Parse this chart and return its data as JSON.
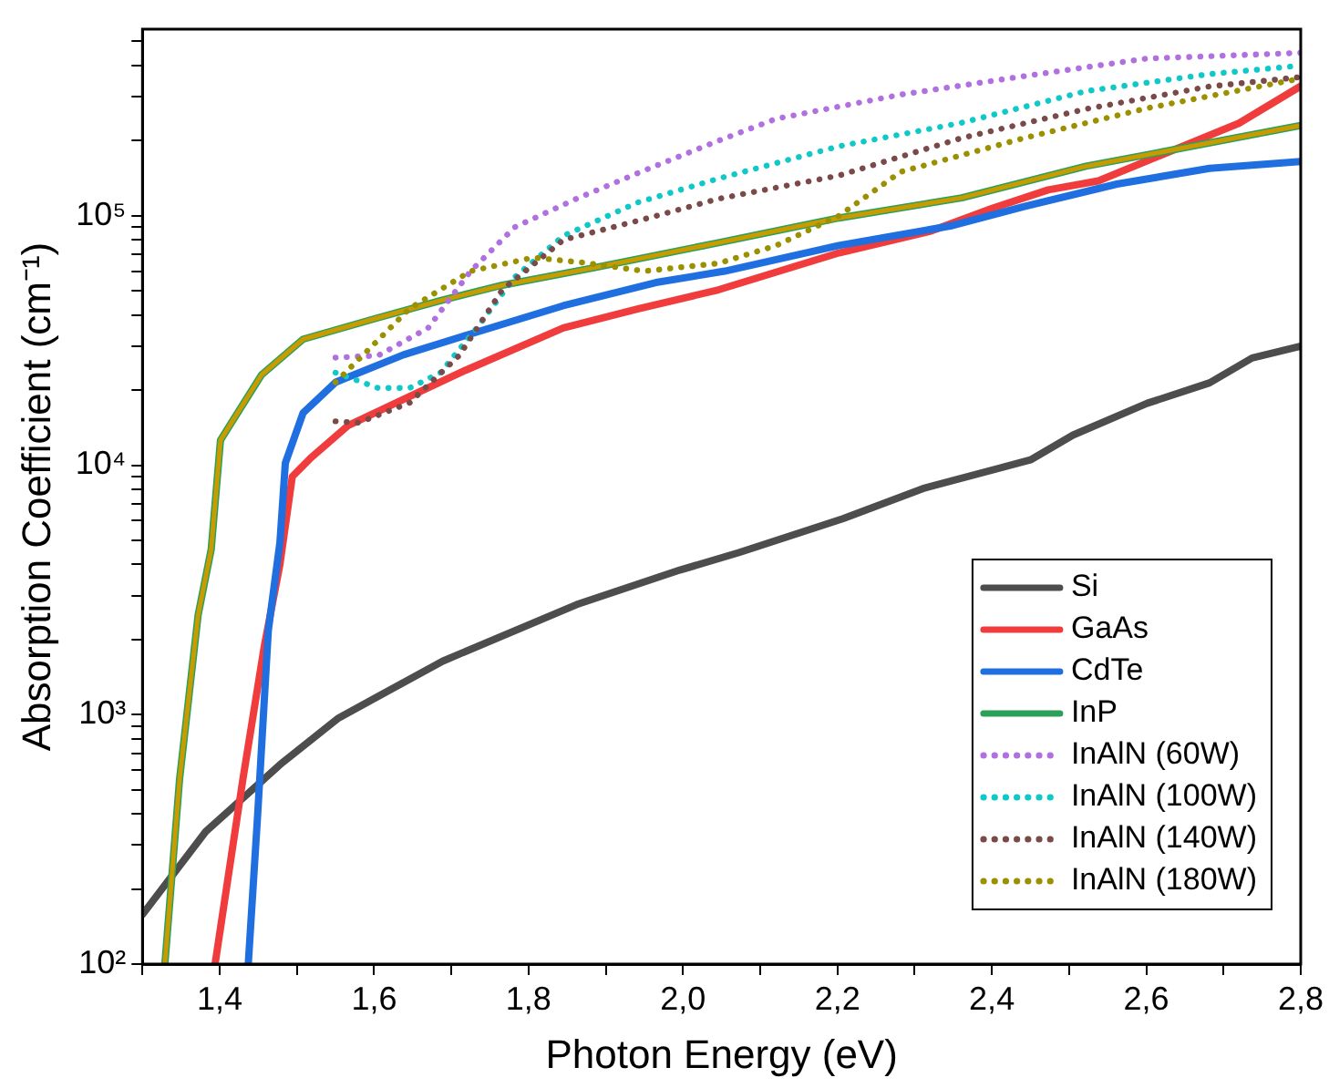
{
  "chart_data": {
    "type": "line",
    "xlabel": "Photon Energy (eV)",
    "ylabel": "Absorption Coefficient (cm⁻¹)",
    "log": "y",
    "grid": false,
    "legend": "bottom right",
    "marker": "none",
    "xlim": [
      1.3,
      2.8
    ],
    "ylim": [
      100,
      560000
    ],
    "xticks": [
      {
        "value": 1.3,
        "label": null
      },
      {
        "value": 1.4,
        "label": "1,4"
      },
      {
        "value": 1.5,
        "label": null
      },
      {
        "value": 1.6,
        "label": "1,6"
      },
      {
        "value": 1.7,
        "label": null
      },
      {
        "value": 1.8,
        "label": "1,8"
      },
      {
        "value": 1.9,
        "label": null
      },
      {
        "value": 2.0,
        "label": "2,0"
      },
      {
        "value": 2.1,
        "label": null
      },
      {
        "value": 2.2,
        "label": "2,2"
      },
      {
        "value": 2.3,
        "label": null
      },
      {
        "value": 2.4,
        "label": "2,4"
      },
      {
        "value": 2.5,
        "label": null
      },
      {
        "value": 2.6,
        "label": "2,6"
      },
      {
        "value": 2.7,
        "label": null
      },
      {
        "value": 2.8,
        "label": "2,8"
      }
    ],
    "yticks": [
      {
        "value": 100,
        "label": "10²"
      },
      {
        "value": 200,
        "label": null
      },
      {
        "value": 300,
        "label": null
      },
      {
        "value": 400,
        "label": null
      },
      {
        "value": 500,
        "label": null
      },
      {
        "value": 600,
        "label": null
      },
      {
        "value": 700,
        "label": null
      },
      {
        "value": 800,
        "label": null
      },
      {
        "value": 900,
        "label": null
      },
      {
        "value": 1000,
        "label": "10³"
      },
      {
        "value": 2000,
        "label": null
      },
      {
        "value": 3000,
        "label": null
      },
      {
        "value": 4000,
        "label": null
      },
      {
        "value": 5000,
        "label": null
      },
      {
        "value": 6000,
        "label": null
      },
      {
        "value": 7000,
        "label": null
      },
      {
        "value": 8000,
        "label": null
      },
      {
        "value": 9000,
        "label": null
      },
      {
        "value": 10000,
        "label": "10⁴"
      },
      {
        "value": 20000,
        "label": null
      },
      {
        "value": 30000,
        "label": null
      },
      {
        "value": 40000,
        "label": null
      },
      {
        "value": 50000,
        "label": null
      },
      {
        "value": 60000,
        "label": null
      },
      {
        "value": 70000,
        "label": null
      },
      {
        "value": 80000,
        "label": null
      },
      {
        "value": 90000,
        "label": null
      },
      {
        "value": 100000,
        "label": "10⁵"
      },
      {
        "value": 200000,
        "label": null
      },
      {
        "value": 300000,
        "label": null
      },
      {
        "value": 400000,
        "label": null
      },
      {
        "value": 500000,
        "label": null
      }
    ],
    "series": [
      {
        "name": "Si",
        "color": "#4d4d4d",
        "line_style": "solid",
        "x": [
          1.3,
          1.382,
          1.478,
          1.554,
          1.689,
          1.862,
          1.996,
          2.073,
          2.207,
          2.313,
          2.45,
          2.505,
          2.601,
          2.682,
          2.737,
          2.8
        ],
        "values": [
          158,
          340,
          630,
          970,
          1640,
          2760,
          3800,
          4470,
          6100,
          8100,
          10500,
          13200,
          17700,
          21400,
          26900,
          30000
        ]
      },
      {
        "name": "GaAs",
        "color": "#f03c3c",
        "line_style": "solid",
        "x": [
          1.394,
          1.43,
          1.458,
          1.478,
          1.494,
          1.518,
          1.566,
          1.629,
          1.718,
          1.845,
          1.941,
          2.046,
          2.202,
          2.322,
          2.4,
          2.473,
          2.538,
          2.617,
          2.72,
          2.8
        ],
        "values": [
          100,
          550,
          1900,
          4000,
          9000,
          10700,
          14400,
          17800,
          24000,
          35500,
          42300,
          50500,
          71000,
          87000,
          107000,
          127000,
          138000,
          174000,
          235000,
          331000
        ]
      },
      {
        "name": "CdTe",
        "color": "#1f6fe0",
        "line_style": "solid",
        "x": [
          1.437,
          1.449,
          1.463,
          1.478,
          1.485,
          1.508,
          1.55,
          1.638,
          1.725,
          1.845,
          1.965,
          2.054,
          2.202,
          2.346,
          2.442,
          2.562,
          2.682,
          2.8
        ],
        "values": [
          100,
          390,
          2180,
          4900,
          10200,
          16200,
          21500,
          27700,
          33600,
          43600,
          54000,
          60000,
          76000,
          91000,
          109000,
          134000,
          155000,
          165000
        ]
      },
      {
        "name": "InP",
        "color": "#2ca05a",
        "line_style": "solid",
        "x": [
          1.329,
          1.348,
          1.372,
          1.389,
          1.401,
          1.454,
          1.508,
          1.605,
          1.686,
          1.766,
          1.886,
          2.046,
          2.202,
          2.361,
          2.522,
          2.682,
          2.8
        ],
        "values": [
          100,
          550,
          2500,
          4600,
          12600,
          23000,
          32000,
          39000,
          45700,
          52700,
          62000,
          78000,
          98000,
          118000,
          158000,
          196000,
          230000
        ]
      },
      {
        "color": "#c89b00",
        "line_style": "solid",
        "x": [
          1.329,
          1.348,
          1.372,
          1.389,
          1.401,
          1.454,
          1.508,
          1.605,
          1.686,
          1.766,
          1.886,
          2.046,
          2.202,
          2.361,
          2.522,
          2.682,
          2.8
        ],
        "values": [
          100,
          550,
          2500,
          4600,
          12600,
          23000,
          32000,
          39000,
          45700,
          52700,
          62000,
          78000,
          98000,
          118000,
          158000,
          196000,
          230000
        ]
      },
      {
        "name": "InAlN (60W)",
        "color": "#b070e0",
        "line_style": "dotted",
        "x": [
          1.55,
          1.605,
          1.67,
          1.725,
          1.782,
          1.862,
          1.95,
          2.046,
          2.121,
          2.282,
          2.442,
          2.601,
          2.8
        ],
        "values": [
          27000,
          27500,
          35500,
          60000,
          90000,
          117000,
          152000,
          200000,
          245000,
          306000,
          363000,
          427000,
          450000
        ]
      },
      {
        "name": "InAlN (100W)",
        "color": "#10c8c8",
        "line_style": "dotted",
        "x": [
          1.55,
          1.605,
          1.646,
          1.686,
          1.734,
          1.782,
          1.845,
          1.941,
          2.046,
          2.202,
          2.361,
          2.522,
          2.682,
          2.8
        ],
        "values": [
          23500,
          20400,
          20400,
          23500,
          35800,
          56700,
          83000,
          113000,
          141000,
          190000,
          236000,
          316000,
          370000,
          400000
        ]
      },
      {
        "name": "InAlN (140W)",
        "color": "#7a4a48",
        "line_style": "dotted",
        "x": [
          1.55,
          1.58,
          1.646,
          1.71,
          1.766,
          1.845,
          1.95,
          2.046,
          2.202,
          2.361,
          2.522,
          2.682,
          2.8
        ],
        "values": [
          15000,
          14800,
          17800,
          27500,
          50500,
          80000,
          97000,
          117000,
          145000,
          205000,
          268000,
          330000,
          360000
        ]
      },
      {
        "name": "InAlN (180W)",
        "color": "#9a9000",
        "line_style": "dotted",
        "x": [
          1.55,
          1.59,
          1.646,
          1.725,
          1.806,
          1.869,
          1.95,
          2.046,
          2.121,
          2.202,
          2.282,
          2.442,
          2.601,
          2.8
        ],
        "values": [
          21500,
          28500,
          42500,
          60000,
          68000,
          65000,
          60000,
          64500,
          76000,
          100000,
          150000,
          205000,
          270000,
          355000
        ]
      }
    ]
  }
}
